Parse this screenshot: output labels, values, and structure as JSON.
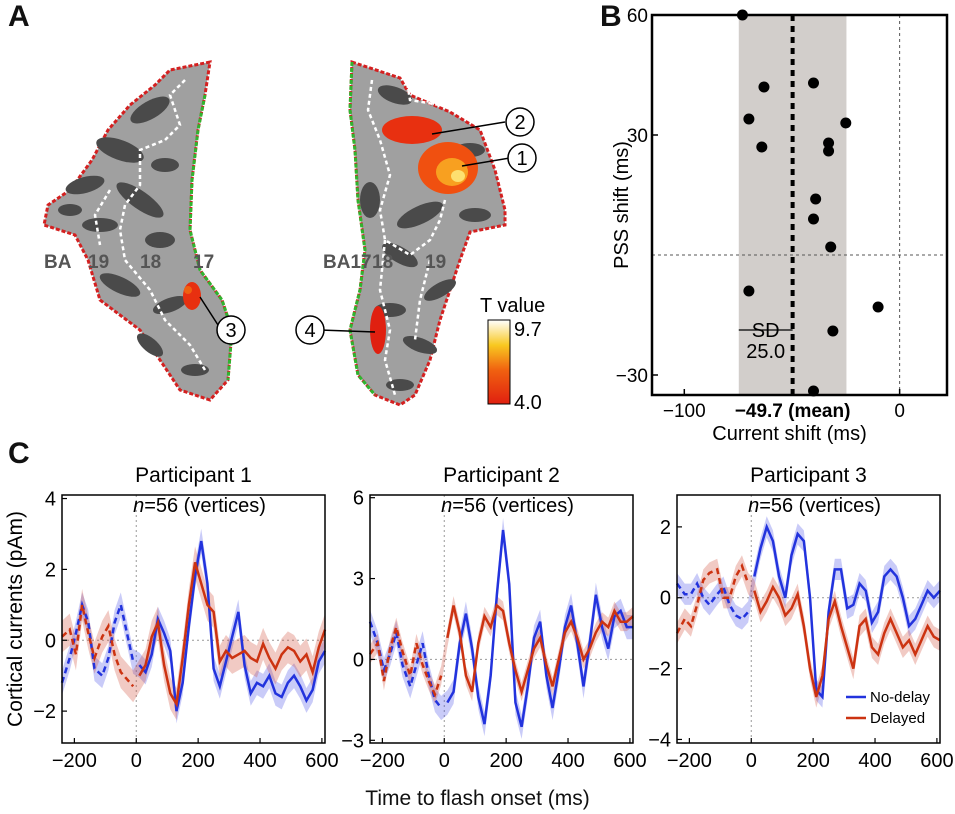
{
  "panel_labels": {
    "a": "A",
    "b": "B",
    "c": "C"
  },
  "panel_a": {
    "regions_left": [
      "BA",
      "19",
      "18",
      "17"
    ],
    "regions_right": [
      "BA17",
      "18",
      "19"
    ],
    "markers": [
      "1",
      "2",
      "3",
      "4"
    ],
    "colorbar": {
      "title": "T value",
      "max_label": "9.7",
      "min_label": "4.0",
      "low_color": "#e02010",
      "high_color": "#ffffff"
    },
    "colors": {
      "hemisphere_fill": "#a0a0a0",
      "sulci_fill": "#4a4a4a",
      "outline_red": "#d42020",
      "outline_green": "#2fb52f",
      "boundary_white": "#ffffff"
    }
  },
  "chart_data": [
    {
      "type": "scatter",
      "panel": "B",
      "xlabel": "Current shift (ms)",
      "ylabel": "PSS shift (ms)",
      "xlim": [
        -115,
        22
      ],
      "ylim": [
        -35,
        60
      ],
      "x_ticks": [
        -100,
        0
      ],
      "x_tick_labels": [
        "−100",
        "0"
      ],
      "y_ticks": [
        -30,
        30,
        60
      ],
      "y_tick_labels": [
        "−30",
        "30",
        "60"
      ],
      "mean": -49.7,
      "mean_label": "−49.7 (mean)",
      "sd": 25.0,
      "sd_label": "SD",
      "sd_value_label": "25.0",
      "points": [
        {
          "x": -73,
          "y": 60
        },
        {
          "x": -63,
          "y": 42
        },
        {
          "x": -70,
          "y": 34
        },
        {
          "x": -64,
          "y": 27
        },
        {
          "x": -40,
          "y": 43
        },
        {
          "x": -25,
          "y": 33
        },
        {
          "x": -33,
          "y": 28
        },
        {
          "x": -33,
          "y": 26
        },
        {
          "x": -39,
          "y": 14
        },
        {
          "x": -40,
          "y": 9
        },
        {
          "x": -32,
          "y": 2
        },
        {
          "x": -70,
          "y": -9
        },
        {
          "x": -10,
          "y": -13
        },
        {
          "x": -31,
          "y": -19
        },
        {
          "x": -40,
          "y": -34
        }
      ],
      "reference_lines": {
        "x": 0,
        "y": 0
      },
      "grid": false
    },
    {
      "type": "line",
      "panel": "C",
      "title": "Participant 1",
      "annotation": "n=56 (vertices)",
      "xlabel": "Time to flash onset (ms)",
      "ylabel": "Cortical currents (pAm)",
      "xlim": [
        -240,
        610
      ],
      "ylim": [
        -2.9,
        4.1
      ],
      "x_ticks": [
        -200,
        0,
        200,
        400,
        600
      ],
      "x_tick_labels": [
        "−200",
        "0",
        "200",
        "400",
        "600"
      ],
      "y_ticks": [
        -2,
        0,
        2,
        4
      ],
      "y_tick_labels": [
        "−2",
        "0",
        "2",
        "4"
      ],
      "solid_from": 0,
      "series": [
        {
          "name": "No-delay",
          "color": "#2233dd",
          "x": [
            -240,
            -215,
            -195,
            -175,
            -155,
            -135,
            -110,
            -90,
            -70,
            -50,
            -30,
            -10,
            10,
            30,
            50,
            70,
            90,
            110,
            130,
            150,
            170,
            190,
            210,
            230,
            250,
            270,
            290,
            310,
            330,
            350,
            370,
            390,
            410,
            430,
            450,
            470,
            490,
            510,
            530,
            550,
            570,
            590,
            610
          ],
          "values": [
            -1.2,
            -0.5,
            0.2,
            1.0,
            0.5,
            -0.8,
            -1.0,
            -0.5,
            0.5,
            1.0,
            0.2,
            -0.6,
            -0.7,
            -0.9,
            -0.4,
            0.6,
            0.2,
            -0.3,
            -2.0,
            -1.2,
            0.4,
            1.8,
            2.8,
            1.6,
            -0.8,
            -1.3,
            -0.6,
            0.1,
            0.8,
            -0.7,
            -1.5,
            -1.2,
            -1.3,
            -1.0,
            -1.5,
            -1.6,
            -1.2,
            -1.0,
            -1.3,
            -1.7,
            -1.4,
            -0.6,
            -0.3
          ],
          "band": 0.35
        },
        {
          "name": "Delayed",
          "color": "#cc3311",
          "x": [
            -240,
            -215,
            -195,
            -175,
            -155,
            -135,
            -110,
            -90,
            -70,
            -50,
            -30,
            -10,
            10,
            30,
            50,
            70,
            90,
            110,
            130,
            150,
            170,
            190,
            210,
            230,
            250,
            270,
            290,
            310,
            330,
            350,
            370,
            390,
            410,
            430,
            450,
            470,
            490,
            510,
            530,
            550,
            570,
            590,
            610
          ],
          "values": [
            0.1,
            0.3,
            -0.4,
            1.0,
            0.2,
            -0.5,
            0.1,
            0.4,
            -0.4,
            -0.9,
            -1.1,
            -1.3,
            -1.0,
            -0.7,
            0.1,
            0.5,
            -0.7,
            -1.5,
            -1.8,
            -0.5,
            1.0,
            2.2,
            1.6,
            1.0,
            0.8,
            -0.6,
            -0.3,
            -0.5,
            -0.4,
            -0.3,
            -0.5,
            -0.6,
            -0.1,
            -0.5,
            -0.8,
            -0.4,
            -0.2,
            -0.3,
            -0.6,
            -0.4,
            -0.9,
            -0.2,
            0.3
          ],
          "band": 0.45
        }
      ]
    },
    {
      "type": "line",
      "panel": "C",
      "title": "Participant 2",
      "annotation": "n=56 (vertices)",
      "xlim": [
        -240,
        610
      ],
      "ylim": [
        -3.1,
        6.1
      ],
      "x_ticks": [
        -200,
        0,
        200,
        400,
        600
      ],
      "x_tick_labels": [
        "−200",
        "0",
        "200",
        "400",
        "600"
      ],
      "y_ticks": [
        -3,
        0,
        3,
        6
      ],
      "y_tick_labels": [
        "−3",
        "0",
        "3",
        "6"
      ],
      "solid_from": 0,
      "series": [
        {
          "name": "No-delay",
          "color": "#2233dd",
          "x": [
            -240,
            -215,
            -195,
            -175,
            -155,
            -135,
            -110,
            -90,
            -70,
            -50,
            -30,
            -10,
            10,
            30,
            50,
            70,
            90,
            110,
            130,
            150,
            170,
            190,
            210,
            230,
            250,
            270,
            290,
            310,
            330,
            350,
            370,
            390,
            410,
            430,
            450,
            470,
            490,
            510,
            530,
            550,
            570,
            590,
            610
          ],
          "values": [
            1.4,
            0.6,
            -0.4,
            0.2,
            1.0,
            -0.2,
            -1.0,
            -0.2,
            0.6,
            -0.6,
            -1.5,
            -1.8,
            -1.6,
            -1.2,
            0.6,
            1.7,
            0.4,
            -1.4,
            -2.4,
            -0.6,
            2.4,
            4.8,
            2.8,
            -1.6,
            -2.5,
            -1.0,
            0.8,
            1.4,
            -0.6,
            -1.8,
            -0.4,
            1.2,
            2.0,
            0.6,
            -1.0,
            0.6,
            2.4,
            1.2,
            0.4,
            1.6,
            1.8,
            1.2,
            1.2
          ],
          "band": 0.45
        },
        {
          "name": "Delayed",
          "color": "#cc3311",
          "x": [
            -240,
            -215,
            -195,
            -175,
            -155,
            -135,
            -110,
            -90,
            -70,
            -50,
            -30,
            -10,
            10,
            30,
            50,
            70,
            90,
            110,
            130,
            150,
            170,
            190,
            210,
            230,
            250,
            270,
            290,
            310,
            330,
            350,
            370,
            390,
            410,
            430,
            450,
            470,
            490,
            510,
            530,
            550,
            570,
            590,
            610
          ],
          "values": [
            0.2,
            0.6,
            -0.8,
            0.4,
            1.2,
            0.3,
            -0.6,
            0.6,
            -0.2,
            -0.8,
            -1.3,
            -0.6,
            0.8,
            2.0,
            1.0,
            -0.6,
            -1.2,
            0.6,
            1.6,
            1.2,
            2.0,
            1.8,
            0.6,
            -0.4,
            -1.2,
            -0.4,
            0.4,
            0.8,
            -0.2,
            -1.0,
            0.0,
            1.0,
            1.4,
            0.8,
            0.0,
            0.4,
            1.0,
            1.4,
            1.2,
            1.8,
            1.4,
            1.4,
            1.6
          ],
          "band": 0.35
        }
      ]
    },
    {
      "type": "line",
      "panel": "C",
      "title": "Participant 3",
      "annotation": "n=56 (vertices)",
      "xlim": [
        -240,
        610
      ],
      "ylim": [
        -4.1,
        2.9
      ],
      "x_ticks": [
        -200,
        0,
        200,
        400,
        600
      ],
      "x_tick_labels": [
        "−200",
        "0",
        "200",
        "400",
        "600"
      ],
      "y_ticks": [
        -4,
        -2,
        0,
        2
      ],
      "y_tick_labels": [
        "−4",
        "−2",
        "0",
        "2"
      ],
      "solid_from": 0,
      "series": [
        {
          "name": "No-delay",
          "color": "#2233dd",
          "x": [
            -240,
            -215,
            -195,
            -175,
            -155,
            -135,
            -110,
            -90,
            -70,
            -50,
            -30,
            -10,
            10,
            30,
            50,
            70,
            90,
            110,
            130,
            150,
            170,
            190,
            210,
            230,
            250,
            270,
            290,
            310,
            330,
            350,
            370,
            390,
            410,
            430,
            450,
            470,
            490,
            510,
            530,
            550,
            570,
            590,
            610
          ],
          "values": [
            0.4,
            0.1,
            0.1,
            0.4,
            0.0,
            -0.2,
            0.1,
            0.3,
            -0.2,
            -0.5,
            -0.6,
            -0.4,
            0.6,
            1.4,
            2.0,
            1.6,
            0.6,
            0.0,
            1.2,
            1.8,
            1.6,
            0.0,
            -2.6,
            -2.8,
            -0.4,
            0.8,
            0.8,
            -0.3,
            -0.2,
            0.4,
            0.2,
            -0.7,
            -0.4,
            0.6,
            0.8,
            0.6,
            0.0,
            -0.8,
            -0.6,
            -0.2,
            0.2,
            0.0,
            0.2
          ],
          "band": 0.3
        },
        {
          "name": "Delayed",
          "color": "#cc3311",
          "x": [
            -240,
            -215,
            -195,
            -175,
            -155,
            -135,
            -110,
            -90,
            -70,
            -50,
            -30,
            -10,
            10,
            30,
            50,
            70,
            90,
            110,
            130,
            150,
            170,
            190,
            210,
            230,
            250,
            270,
            290,
            310,
            330,
            350,
            370,
            390,
            410,
            430,
            450,
            470,
            490,
            510,
            530,
            550,
            570,
            590,
            610
          ],
          "values": [
            -1.0,
            -0.6,
            -0.8,
            -0.2,
            0.5,
            0.7,
            0.8,
            0.0,
            0.0,
            0.6,
            0.9,
            0.4,
            0.2,
            -0.4,
            -0.1,
            0.3,
            0.0,
            -0.5,
            -0.3,
            0.1,
            -0.8,
            -2.0,
            -2.8,
            -2.2,
            -0.6,
            -0.1,
            -0.8,
            -1.4,
            -2.0,
            -0.8,
            -0.6,
            -1.4,
            -1.6,
            -1.0,
            -0.6,
            -1.0,
            -1.4,
            -1.2,
            -1.6,
            -1.2,
            -0.8,
            -1.1,
            -1.2
          ],
          "band": 0.3
        }
      ],
      "legend": {
        "placement": "bottom-right",
        "entries": [
          "No-delay",
          "Delayed"
        ]
      }
    }
  ]
}
